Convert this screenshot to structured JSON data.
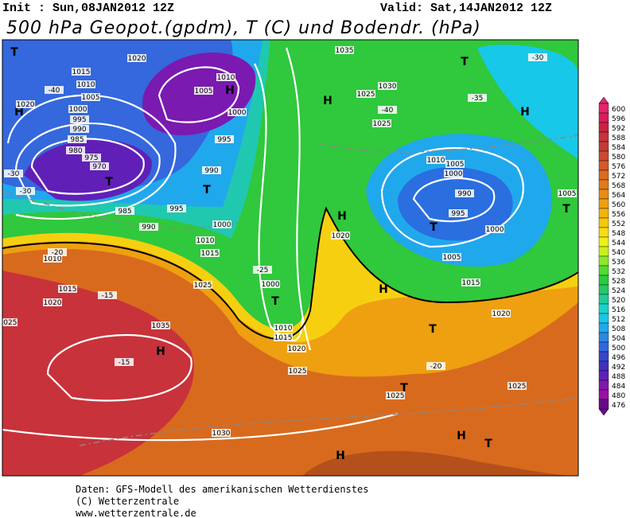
{
  "header": {
    "init": "Init : Sun,08JAN2012 12Z",
    "valid": "Valid: Sat,14JAN2012 12Z",
    "title": "500 hPa Geopot.(gpdm), T (C) und Bodendr. (hPa)"
  },
  "map_labels": [
    "T",
    "1020",
    "1015",
    "1010",
    "-40",
    "1005",
    "1000",
    "995",
    "990",
    "985",
    "980",
    "975",
    "970",
    "T",
    "985",
    "H",
    "1020",
    "-30",
    "-30",
    "H",
    "1010",
    "1005",
    "1000",
    "995",
    "990",
    "T",
    "995",
    "990",
    "1000",
    "1010",
    "1015",
    "1025",
    "1010",
    "1015",
    "1020",
    "1035",
    "H",
    "-15",
    "1030",
    "T",
    "1000",
    "1010",
    "1015",
    "1020",
    "1025",
    "1035",
    "1030",
    "1025",
    "-40",
    "1025",
    "H",
    "T",
    "-35",
    "H",
    "1010",
    "1005",
    "1000",
    "990",
    "995",
    "T",
    "1000",
    "1005",
    "1015",
    "H",
    "T",
    "1020",
    "1025",
    "T",
    "H",
    "T",
    "H",
    "-20",
    "1025",
    "-30",
    "1005",
    "T",
    "H",
    "1020",
    "-25",
    "-20",
    "-15",
    "1025"
  ],
  "colorbar": {
    "labels": [
      600,
      596,
      592,
      588,
      584,
      580,
      576,
      572,
      568,
      564,
      560,
      556,
      552,
      548,
      544,
      540,
      536,
      532,
      528,
      524,
      520,
      516,
      512,
      508,
      504,
      500,
      496,
      492,
      488,
      484,
      480,
      476
    ],
    "colors": [
      "#e6246e",
      "#d81e5a",
      "#cc2242",
      "#c8323a",
      "#c23a36",
      "#cc4a30",
      "#d45a2a",
      "#dc6a20",
      "#e27a18",
      "#e88c14",
      "#eea010",
      "#f2b40e",
      "#f6c80c",
      "#f8dc10",
      "#eef010",
      "#c8f01c",
      "#8ce828",
      "#50dc30",
      "#28cc3c",
      "#24c864",
      "#20cc9c",
      "#18d4cc",
      "#18c8e8",
      "#20a8ec",
      "#2a88e4",
      "#3068dc",
      "#3446cc",
      "#4030c0",
      "#6020b8",
      "#8018b0",
      "#9a10a8",
      "#6a0a8a"
    ]
  },
  "footer": [
    "Daten: GFS-Modell des amerikanischen Wetterdienstes",
    "(C) Wetterzentrale",
    "www.wetterzentrale.de"
  ]
}
